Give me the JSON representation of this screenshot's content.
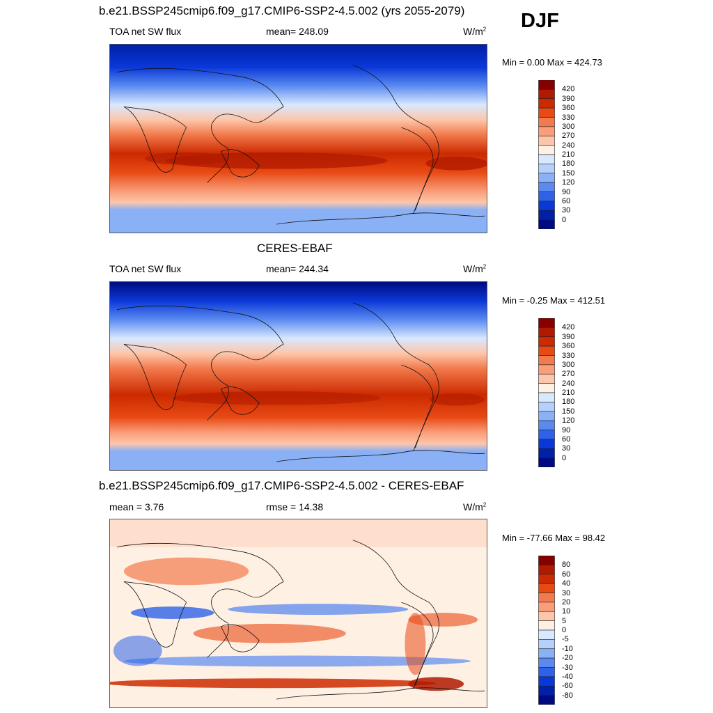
{
  "season": "DJF",
  "panels": [
    {
      "id": "model",
      "title": "b.e21.BSSP245cmip6.f09_g17.CMIP6-SSP2-4.5.002 (yrs 2055-2079)",
      "left_label": "TOA net SW flux",
      "center_label": "mean= 248.09",
      "units": "W/m",
      "units_sup": "2",
      "minmax": "Min =   0.00 Max = 424.73",
      "levels": [
        "420",
        "390",
        "360",
        "330",
        "300",
        "270",
        "240",
        "210",
        "180",
        "150",
        "120",
        "90",
        "60",
        "30",
        "0"
      ],
      "colors": [
        "#860000",
        "#b01a00",
        "#cc2a00",
        "#e84a14",
        "#f27a4c",
        "#fa9d78",
        "#fdc6aa",
        "#fff0e4",
        "#d8e8ff",
        "#b5d0fb",
        "#8ab0f5",
        "#5a8af0",
        "#2e62e8",
        "#0a38d8",
        "#0020a8",
        "#000a80"
      ]
    },
    {
      "id": "obs",
      "title": "CERES-EBAF",
      "left_label": "TOA net SW flux",
      "center_label": "mean= 244.34",
      "units": "W/m",
      "units_sup": "2",
      "minmax": "Min =  -0.25 Max = 412.51",
      "levels": [
        "420",
        "390",
        "360",
        "330",
        "300",
        "270",
        "240",
        "210",
        "180",
        "150",
        "120",
        "90",
        "60",
        "30",
        "0"
      ],
      "colors": [
        "#860000",
        "#b01a00",
        "#cc2a00",
        "#e84a14",
        "#f27a4c",
        "#fa9d78",
        "#fdc6aa",
        "#fff0e4",
        "#d8e8ff",
        "#b5d0fb",
        "#8ab0f5",
        "#5a8af0",
        "#2e62e8",
        "#0a38d8",
        "#0020a8",
        "#000a80"
      ]
    },
    {
      "id": "diff",
      "title": "b.e21.BSSP245cmip6.f09_g17.CMIP6-SSP2-4.5.002 - CERES-EBAF",
      "left_label": "mean =   3.76",
      "center_label": "rmse =  14.38",
      "units": "W/m",
      "units_sup": "2",
      "minmax": "Min = -77.66 Max =  98.42",
      "levels": [
        "80",
        "60",
        "40",
        "30",
        "20",
        "10",
        "5",
        "0",
        "-5",
        "-10",
        "-20",
        "-30",
        "-40",
        "-60",
        "-80"
      ],
      "colors": [
        "#860000",
        "#b01a00",
        "#cc2a00",
        "#e84a14",
        "#f27a4c",
        "#fa9d78",
        "#fdc6aa",
        "#fff0e4",
        "#d8e8ff",
        "#b5d0fb",
        "#8ab0f5",
        "#5a8af0",
        "#2e62e8",
        "#0a38d8",
        "#0020a8",
        "#000a80"
      ]
    }
  ]
}
